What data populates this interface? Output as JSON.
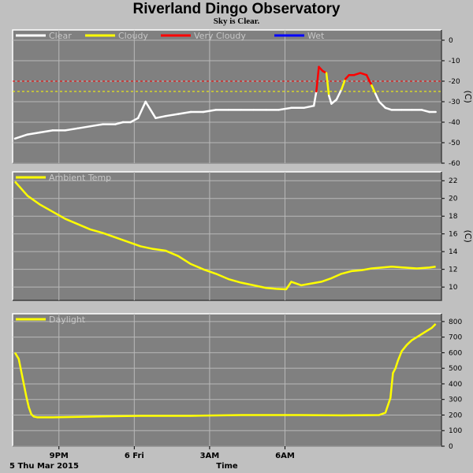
{
  "title": "Riverland Dingo Observatory",
  "subtitle": "Sky is Clear.",
  "date_label": "5 Thu Mar 2015",
  "x_axis_title": "Time",
  "chart_data": [
    {
      "type": "line",
      "name": "sky",
      "unit": "(C)",
      "ylim": [
        -60,
        5
      ],
      "yticks": [
        "0",
        "-10",
        "-20",
        "-30",
        "-40",
        "-50",
        "-60"
      ],
      "ytick_values": [
        0,
        -10,
        -20,
        -30,
        -40,
        -50,
        -60
      ],
      "thresholds": [
        {
          "value": -20,
          "color": "#ff0000"
        },
        {
          "value": -25,
          "color": "#ffff00"
        }
      ],
      "legend": [
        {
          "label": "Clear",
          "color": "#ffffff"
        },
        {
          "label": "Cloudy",
          "color": "#ffff00"
        },
        {
          "label": "Very Cloudy",
          "color": "#ff0000"
        },
        {
          "label": "Wet",
          "color": "#0000ff"
        }
      ],
      "hours": [
        0,
        0.5,
        1,
        1.5,
        2,
        2.5,
        3,
        3.5,
        4,
        4.3,
        4.6,
        4.9,
        5.2,
        5.6,
        6,
        6.5,
        7,
        7.5,
        8,
        8.5,
        9,
        9.5,
        10,
        10.5,
        11,
        11.5,
        11.9,
        12,
        12.1,
        12.25,
        12.4,
        12.5,
        12.6,
        12.8,
        13.0,
        13.15,
        13.3,
        13.5,
        13.75,
        14.0,
        14.2,
        14.35,
        14.5,
        14.75,
        15,
        15.4,
        15.8,
        16.2,
        16.5,
        16.75
      ],
      "values": [
        -48,
        -46,
        -45,
        -44,
        -44,
        -43,
        -42,
        -41,
        -41,
        -40,
        -40,
        -38,
        -30,
        -38,
        -37,
        -36,
        -35,
        -35,
        -34,
        -34,
        -34,
        -34,
        -34,
        -34,
        -33,
        -33,
        -32,
        -25,
        -13,
        -15,
        -16,
        -27,
        -31,
        -29,
        -24,
        -19,
        -17,
        -17,
        -16,
        -17,
        -22,
        -26,
        -30,
        -33,
        -34,
        -34,
        -34,
        -34,
        -35,
        -35
      ]
    },
    {
      "type": "line",
      "name": "Ambient Temp",
      "unit": "(C)",
      "ylim": [
        8.5,
        23
      ],
      "yticks": [
        "22",
        "20",
        "18",
        "16",
        "14",
        "12",
        "10"
      ],
      "ytick_values": [
        22,
        20,
        18,
        16,
        14,
        12,
        10
      ],
      "color": "#ffff00",
      "legend": [
        {
          "label": "Ambient Temp",
          "color": "#ffff00"
        }
      ],
      "hours": [
        0,
        0.5,
        1,
        1.5,
        2,
        2.5,
        3,
        3.5,
        4,
        4.5,
        5,
        5.5,
        6,
        6.5,
        7,
        7.5,
        8,
        8.5,
        9,
        9.5,
        10,
        10.4,
        10.8,
        11,
        11.4,
        11.8,
        12.2,
        12.6,
        13,
        13.4,
        13.8,
        14.2,
        14.6,
        15,
        15.5,
        16,
        16.5,
        16.75
      ],
      "values": [
        21.9,
        20.3,
        19.3,
        18.5,
        17.7,
        17.1,
        16.5,
        16.1,
        15.6,
        15.1,
        14.6,
        14.3,
        14.1,
        13.5,
        12.6,
        12.0,
        11.5,
        10.9,
        10.5,
        10.2,
        9.9,
        9.8,
        9.75,
        10.6,
        10.2,
        10.4,
        10.6,
        11.0,
        11.5,
        11.8,
        11.9,
        12.1,
        12.2,
        12.3,
        12.2,
        12.1,
        12.2,
        12.3
      ]
    },
    {
      "type": "line",
      "name": "Daylight",
      "ylim": [
        0,
        850
      ],
      "yticks": [
        "800",
        "700",
        "600",
        "500",
        "400",
        "300",
        "200",
        "100",
        "0"
      ],
      "ytick_values": [
        800,
        700,
        600,
        500,
        400,
        300,
        200,
        100,
        0
      ],
      "color": "#ffff00",
      "legend": [
        {
          "label": "Daylight",
          "color": "#ffff00"
        }
      ],
      "hours": [
        0,
        0.15,
        0.3,
        0.45,
        0.55,
        0.65,
        0.75,
        0.9,
        1.1,
        1.5,
        3,
        5,
        7,
        9,
        11,
        13,
        14.5,
        14.75,
        14.95,
        15.05,
        15.15,
        15.25,
        15.4,
        15.6,
        15.8,
        16.0,
        16.2,
        16.4,
        16.6,
        16.75
      ],
      "values": [
        600,
        560,
        440,
        320,
        250,
        205,
        190,
        185,
        185,
        185,
        190,
        195,
        195,
        200,
        200,
        198,
        200,
        215,
        310,
        470,
        500,
        550,
        610,
        650,
        680,
        700,
        720,
        740,
        760,
        785
      ]
    }
  ],
  "x_ticks": [
    {
      "label": "9PM",
      "hour": 1.75
    },
    {
      "label": "6 Fri",
      "hour": 4.75
    },
    {
      "label": "3AM",
      "hour": 7.75
    },
    {
      "label": "6AM",
      "hour": 10.75
    }
  ]
}
